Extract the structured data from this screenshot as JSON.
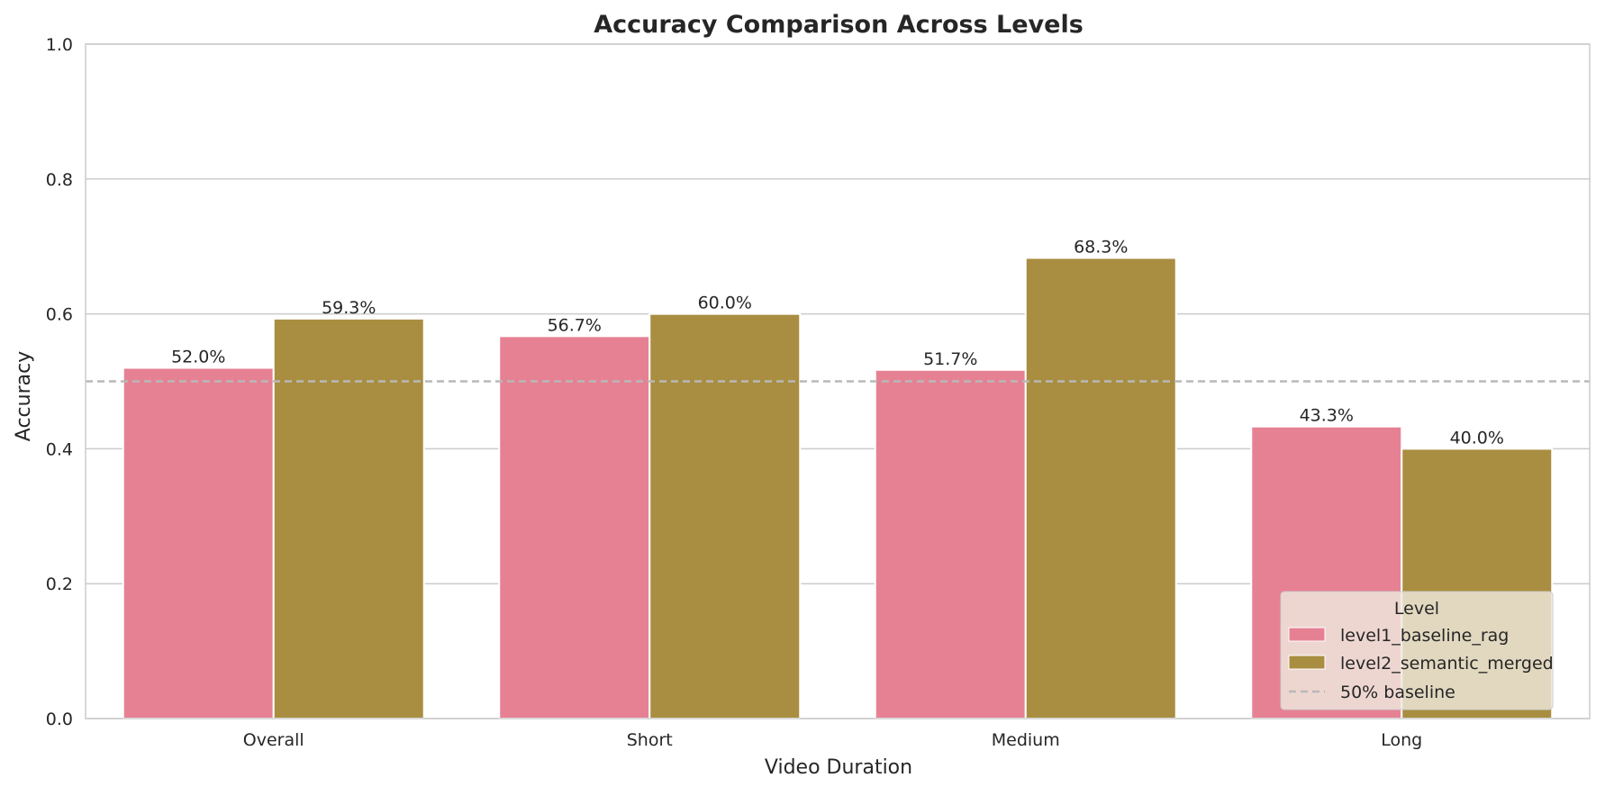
{
  "chart_data": {
    "type": "bar",
    "title": "Accuracy Comparison Across Levels",
    "xlabel": "Video Duration",
    "ylabel": "Accuracy",
    "categories": [
      "Overall",
      "Short",
      "Medium",
      "Long"
    ],
    "series": [
      {
        "name": "level1_baseline_rag",
        "values": [
          0.52,
          0.567,
          0.517,
          0.433
        ],
        "labels": [
          "52.0%",
          "56.7%",
          "51.7%",
          "43.3%"
        ],
        "color": "#e68193"
      },
      {
        "name": "level2_semantic_merged",
        "values": [
          0.593,
          0.6,
          0.683,
          0.4
        ],
        "labels": [
          "59.3%",
          "60.0%",
          "68.3%",
          "40.0%"
        ],
        "color": "#a98e41"
      }
    ],
    "ylim": [
      0,
      1.0
    ],
    "yticks": [
      "0.0",
      "0.2",
      "0.4",
      "0.6",
      "0.8",
      "1.0"
    ],
    "ytick_values": [
      0,
      0.2,
      0.4,
      0.6,
      0.8,
      1.0
    ],
    "reference_line": {
      "label": "50% baseline",
      "value": 0.5,
      "color": "#b8b8b8",
      "style": "dashed"
    },
    "legend": {
      "title": "Level",
      "placement": "lower right"
    },
    "grid": "horizontal",
    "colors": {
      "grid": "#cccccc",
      "frame": "#cccccc",
      "legend_background": "#f0ebe0"
    }
  }
}
